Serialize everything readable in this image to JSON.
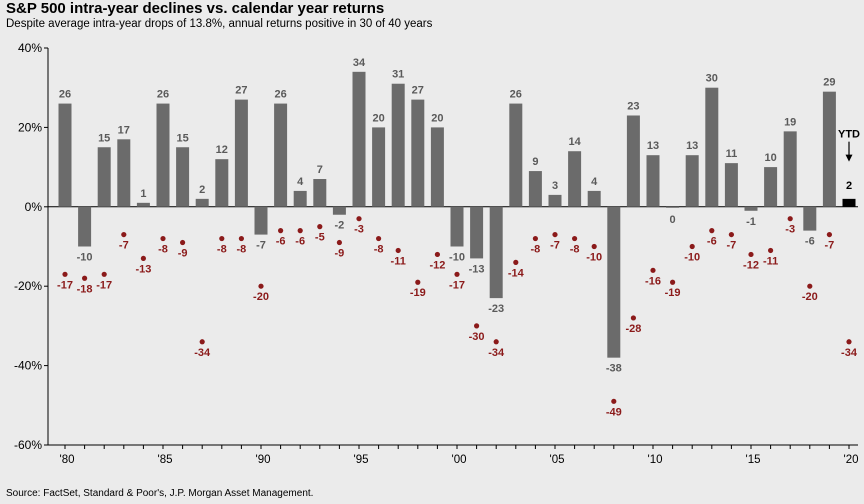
{
  "chart_data": {
    "type": "bar",
    "title": "S&P 500 intra-year declines vs. calendar year returns",
    "subtitle": "Despite average intra-year drops of 13.8%, annual returns positive in 30 of 40 years",
    "source": "Source: FactSet, Standard & Poor's, J.P. Morgan Asset Management.",
    "years": [
      1980,
      1981,
      1982,
      1983,
      1984,
      1985,
      1986,
      1987,
      1988,
      1989,
      1990,
      1991,
      1992,
      1993,
      1994,
      1995,
      1996,
      1997,
      1998,
      1999,
      2000,
      2001,
      2002,
      2003,
      2004,
      2005,
      2006,
      2007,
      2008,
      2009,
      2010,
      2011,
      2012,
      2013,
      2014,
      2015,
      2016,
      2017,
      2018,
      2019,
      2020
    ],
    "series": [
      {
        "name": "",
        "values": [
          26,
          -10,
          15,
          17,
          1,
          26,
          15,
          2,
          12,
          27,
          -7,
          26,
          4,
          7,
          -2,
          34,
          20,
          31,
          27,
          20,
          -10,
          -13,
          -23,
          26,
          9,
          3,
          14,
          4,
          -38,
          23,
          13,
          0,
          13,
          30,
          11,
          -1,
          10,
          19,
          -6,
          29,
          2
        ]
      },
      {
        "name": "",
        "values": [
          -17,
          -18,
          -17,
          -7,
          -13,
          -8,
          -9,
          -34,
          -8,
          -8,
          -20,
          -6,
          -6,
          -5,
          -9,
          -3,
          -8,
          -11,
          -19,
          -12,
          -17,
          -30,
          -34,
          -14,
          -8,
          -7,
          -8,
          -10,
          -49,
          -28,
          -16,
          -19,
          -10,
          -6,
          -7,
          -12,
          -11,
          -3,
          -20,
          -7,
          -34
        ]
      }
    ],
    "bar_labels": [
      "26",
      "-10",
      "15",
      "17",
      "1",
      "26",
      "15",
      "2",
      "12",
      "27",
      "-7",
      "26",
      "4",
      "7",
      "-2",
      "34",
      "20",
      "31",
      "27",
      "20",
      "-10",
      "-13",
      "-23",
      "26",
      "9",
      "3",
      "14",
      "4",
      "-38",
      "23",
      "13",
      "0",
      "13",
      "30",
      "11",
      "-1",
      "10",
      "19",
      "-6",
      "29",
      "2"
    ],
    "drop_labels": [
      "-17",
      "-18",
      "-17",
      "-7",
      "-13",
      "-8",
      "-9",
      "-34",
      "-8",
      "-8",
      "-20",
      "-6",
      "-6",
      "-5",
      "-9",
      "-3",
      "-8",
      "-11",
      "-19",
      "-12",
      "-17",
      "-30",
      "-34",
      "-14",
      "-8",
      "-7",
      "-8",
      "-10",
      "-49",
      "-28",
      "-16",
      "-19",
      "-10",
      "-6",
      "-7",
      "-12",
      "-11",
      "-3",
      "-20",
      "-7",
      "-34"
    ],
    "xticks": [
      1980,
      1985,
      1990,
      1995,
      2000,
      2005,
      2010,
      2015,
      2020
    ],
    "xtick_labels": [
      "'80",
      "'85",
      "'90",
      "'95",
      "'00",
      "'05",
      "'10",
      "'15",
      "'20"
    ],
    "yticks": [
      40,
      20,
      0,
      -20,
      -40,
      -60
    ],
    "ytick_labels": [
      "40%",
      "20%",
      "0%",
      "-20%",
      "-40%",
      "-60%"
    ],
    "ylim": [
      -60,
      40
    ],
    "ytd_label": "YTD",
    "colors": {
      "bar": "#6b6b6b",
      "ytd_bar": "#000000",
      "dot": "#8b1a1a",
      "drop_text": "#8b1a1a",
      "bar_text": "#5a5a5a"
    }
  }
}
